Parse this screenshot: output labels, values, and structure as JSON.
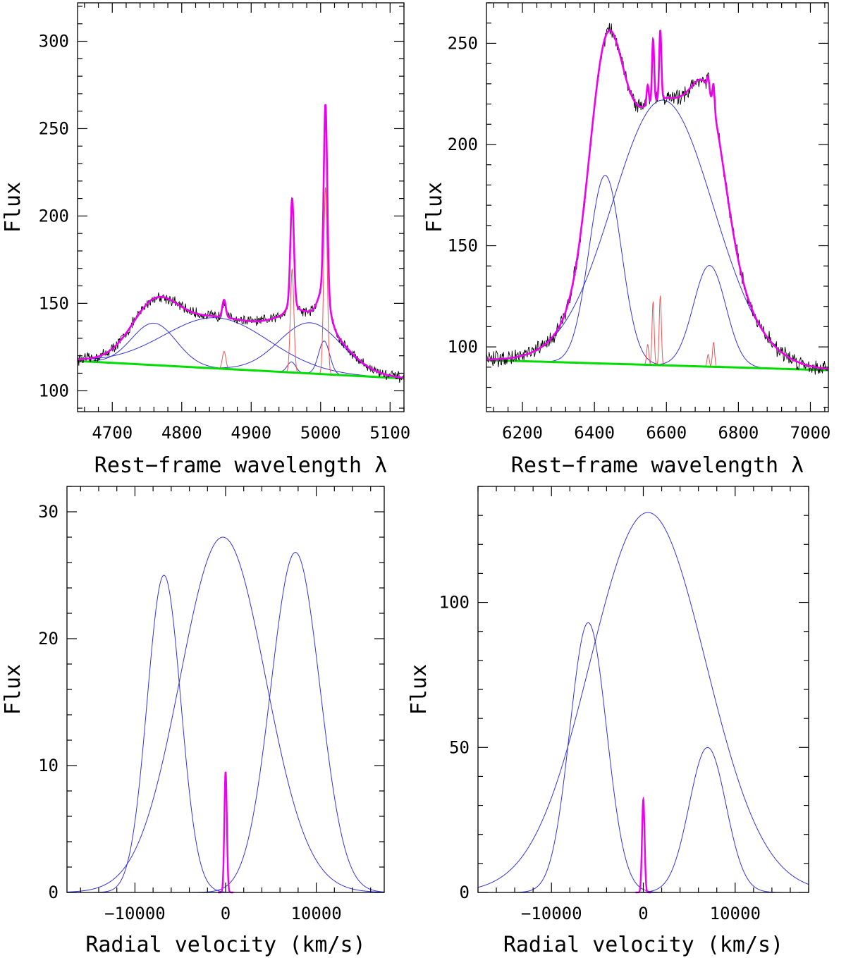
{
  "chart_data": [
    {
      "panel": "top-left",
      "type": "line",
      "xlabel": "Rest−frame wavelength λ",
      "ylabel": "Flux",
      "xlim": [
        4650,
        5120
      ],
      "ylim": [
        88,
        322
      ],
      "xticks": [
        4700,
        4800,
        4900,
        5000,
        5100
      ],
      "xtick_labels": [
        "4700",
        "4800",
        "4900",
        "5000",
        "5100"
      ],
      "yticks": [
        100,
        150,
        200,
        250,
        300
      ],
      "ytick_labels": [
        "100",
        "150",
        "200",
        "250",
        "300"
      ],
      "x_minor_step": 20,
      "y_minor_step": 10,
      "continuum": {
        "name": "continuum",
        "color": "#00dd00",
        "x": [
          4650,
          5120
        ],
        "y": [
          117,
          107
        ]
      },
      "broad_components": [
        {
          "name": "Hβ blue peak",
          "color": "#3333dd",
          "center": 4760,
          "amp": 24,
          "sigma": 32
        },
        {
          "name": "Hβ central broad",
          "color": "#3333dd",
          "center": 4850,
          "amp": 29,
          "sigma": 75
        },
        {
          "name": "Hβ red peak",
          "color": "#3333dd",
          "center": 4985,
          "amp": 29,
          "sigma": 45
        },
        {
          "name": "[O III] 4959 wing",
          "color": "#3333dd",
          "center": 4958,
          "amp": 6,
          "sigma": 6
        },
        {
          "name": "[O III] 5007 wing",
          "color": "#3333dd",
          "center": 5005,
          "amp": 19,
          "sigma": 8
        }
      ],
      "narrow_components": [
        {
          "name": "Hβ narrow",
          "color": "#ee5555",
          "center": 4861,
          "amp": 10,
          "sigma": 2.5
        },
        {
          "name": "[O III] 4959",
          "color": "#ee5555",
          "center": 4959,
          "amp": 59,
          "sigma": 2.5
        },
        {
          "name": "[O III] 5007",
          "color": "#ee5555",
          "center": 5007,
          "amp": 107,
          "sigma": 2.5
        }
      ],
      "model_color": "#ee00ee",
      "observed_color": "#000000",
      "noise_amp": 2.5
    },
    {
      "panel": "top-right",
      "type": "line",
      "xlabel": "Rest−frame wavelength λ",
      "ylabel": "Flux",
      "xlim": [
        6100,
        7050
      ],
      "ylim": [
        68,
        270
      ],
      "xticks": [
        6200,
        6400,
        6600,
        6800,
        7000
      ],
      "xtick_labels": [
        "6200",
        "6400",
        "6600",
        "6800",
        "7000"
      ],
      "yticks": [
        100,
        150,
        200,
        250
      ],
      "ytick_labels": [
        "100",
        "150",
        "200",
        "250"
      ],
      "x_minor_step": 40,
      "y_minor_step": 10,
      "continuum": {
        "name": "continuum",
        "color": "#00dd00",
        "x": [
          6100,
          7050
        ],
        "y": [
          93.5,
          88.5
        ]
      },
      "broad_components": [
        {
          "name": "Hα blue peak",
          "color": "#3333dd",
          "center": 6430,
          "amp": 93,
          "sigma": 45
        },
        {
          "name": "Hα central broad",
          "color": "#3333dd",
          "center": 6590,
          "amp": 131,
          "sigma": 140
        },
        {
          "name": "Hα red peak",
          "color": "#3333dd",
          "center": 6720,
          "amp": 50,
          "sigma": 45
        }
      ],
      "narrow_components": [
        {
          "name": "[N II] 6548",
          "color": "#ee5555",
          "center": 6548,
          "amp": 10,
          "sigma": 3
        },
        {
          "name": "Hα narrow",
          "color": "#ee5555",
          "center": 6563,
          "amp": 31,
          "sigma": 3
        },
        {
          "name": "[N II] 6583",
          "color": "#ee5555",
          "center": 6583,
          "amp": 34,
          "sigma": 3
        },
        {
          "name": "[S II] 6716",
          "color": "#ee5555",
          "center": 6716,
          "amp": 6,
          "sigma": 3
        },
        {
          "name": "[S II] 6731",
          "color": "#ee5555",
          "center": 6731,
          "amp": 12,
          "sigma": 3
        }
      ],
      "model_color": "#ee00ee",
      "observed_color": "#000000",
      "noise_amp": 3
    },
    {
      "panel": "bottom-left",
      "type": "line",
      "xlabel": "Radial velocity (km/s)",
      "ylabel": "Flux",
      "xlim": [
        -17500,
        17500
      ],
      "ylim": [
        0,
        32
      ],
      "xticks": [
        -10000,
        0,
        10000
      ],
      "xtick_labels": [
        "−10000",
        "0",
        "10000"
      ],
      "yticks": [
        0,
        10,
        20,
        30
      ],
      "ytick_labels": [
        "0",
        "10",
        "20",
        "30"
      ],
      "x_minor_step": 2000,
      "y_minor_step": 2,
      "components": [
        {
          "name": "blue peak",
          "color": "#3333dd",
          "center": -6800,
          "amp": 25,
          "sigma": 1850
        },
        {
          "name": "central broad",
          "color": "#3333dd",
          "center": -300,
          "amp": 28,
          "sigma": 4700
        },
        {
          "name": "red peak",
          "color": "#3333dd",
          "center": 7700,
          "amp": 26.8,
          "sigma": 2700
        },
        {
          "name": "narrow",
          "color": "#ee00ee",
          "center": 0,
          "amp": 9.5,
          "sigma": 140
        }
      ]
    },
    {
      "panel": "bottom-right",
      "type": "line",
      "xlabel": "Radial velocity (km/s)",
      "ylabel": "Flux",
      "xlim": [
        -18000,
        18000
      ],
      "ylim": [
        0,
        140
      ],
      "xticks": [
        -10000,
        0,
        10000
      ],
      "xtick_labels": [
        "−10000",
        "0",
        "10000"
      ],
      "yticks": [
        0,
        50,
        100
      ],
      "ytick_labels": [
        "0",
        "50",
        "100"
      ],
      "x_minor_step": 2000,
      "y_minor_step": 10,
      "components": [
        {
          "name": "blue peak",
          "color": "#3333dd",
          "center": -6000,
          "amp": 93,
          "sigma": 2000
        },
        {
          "name": "central broad",
          "color": "#3333dd",
          "center": 500,
          "amp": 131,
          "sigma": 6300
        },
        {
          "name": "red peak",
          "color": "#3333dd",
          "center": 7000,
          "amp": 50,
          "sigma": 2000
        },
        {
          "name": "narrow",
          "color": "#ee00ee",
          "center": 0,
          "amp": 32,
          "sigma": 140
        }
      ]
    }
  ]
}
